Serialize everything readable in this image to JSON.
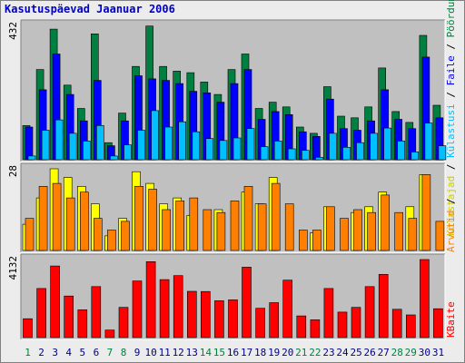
{
  "chart_data": {
    "type": "bar",
    "title": "Kasutuspäevad Jaanuar 2006",
    "x": [
      "1",
      "2",
      "3",
      "4",
      "5",
      "6",
      "7",
      "8",
      "9",
      "10",
      "11",
      "12",
      "13",
      "14",
      "15",
      "16",
      "17",
      "18",
      "19",
      "20",
      "21",
      "22",
      "23",
      "24",
      "25",
      "26",
      "27",
      "28",
      "29",
      "30",
      "31"
    ],
    "weekend_days": [
      "1",
      "7",
      "8",
      "14",
      "15",
      "21",
      "22",
      "28",
      "29"
    ],
    "panels": [
      {
        "max_label": "432",
        "ymax": 432,
        "legend_labels": [
          "Külastajad",
          "Külastusi",
          "Faile",
          "Pöördumisi"
        ],
        "series": [
          {
            "name": "Pöördumisi",
            "color": "#008040",
            "values": [
              110,
              290,
              420,
              240,
              165,
              405,
              55,
              150,
              300,
              430,
              300,
              285,
              280,
              250,
              210,
              290,
              340,
              165,
              185,
              170,
              105,
              85,
              235,
              140,
              135,
              170,
              295,
              155,
              120,
              400,
              175
            ]
          },
          {
            "name": "Faile",
            "color": "#0000ff",
            "values": [
              105,
              225,
              340,
              210,
              125,
              255,
              45,
              125,
              270,
              260,
              255,
              245,
              220,
              215,
              185,
              245,
              290,
              130,
              155,
              145,
              90,
              75,
              195,
              100,
              95,
              125,
              225,
              130,
              100,
              330,
              135
            ]
          },
          {
            "name": "Külastusi",
            "color": "#00c0ff",
            "values": [
              12,
              95,
              128,
              85,
              60,
              110,
              12,
              48,
              95,
              158,
              105,
              122,
              90,
              68,
              62,
              70,
              100,
              42,
              60,
              35,
              30,
              8,
              85,
              40,
              55,
              85,
              102,
              60,
              25,
              118,
              45
            ]
          }
        ]
      },
      {
        "max_label": "28",
        "ymax": 28,
        "series": [
          {
            "name": "Külastajad",
            "color": "#ffff00",
            "values": [
              9,
              18,
              28,
              25,
              22,
              16,
              5,
              11,
              27,
              23,
              16,
              18,
              12,
              0,
              14,
              0,
              20,
              16,
              25,
              0,
              0,
              6,
              15,
              0,
              13,
              15,
              20,
              0,
              15,
              26,
              0
            ]
          },
          {
            "name": "Külastusi",
            "color": "#ff8000",
            "values": [
              11,
              22,
              23,
              18,
              20,
              11,
              7,
              10,
              22,
              21,
              14,
              17,
              18,
              14,
              13,
              17,
              22,
              16,
              23,
              16,
              7,
              7,
              15,
              11,
              14,
              13,
              19,
              13,
              11,
              26,
              10
            ]
          }
        ]
      },
      {
        "max_label": "4132",
        "ymax": 4132,
        "legend_labels": [
          "KBaite"
        ],
        "series": [
          {
            "name": "KBaite",
            "color": "#ff0000",
            "values": [
              1000,
              2600,
              3790,
              2200,
              1470,
              2700,
              400,
              1600,
              3000,
              4020,
              3070,
              3280,
              2450,
              2440,
              1950,
              2000,
              3730,
              1550,
              1850,
              3040,
              1150,
              940,
              2600,
              1350,
              1600,
              2700,
              3350,
              1500,
              1200,
              4132,
              1530
            ]
          }
        ]
      }
    ]
  }
}
